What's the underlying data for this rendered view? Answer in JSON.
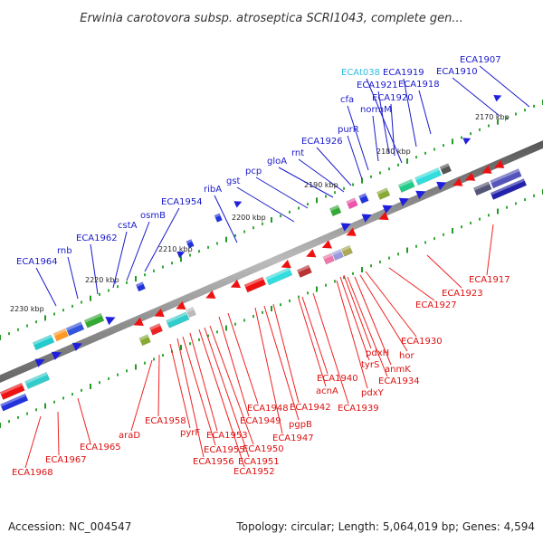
{
  "title": "Erwinia carotovora subsp. atroseptica SCRI1043, complete gen...",
  "footer": {
    "accession": "Accession: NC_004547",
    "summary": "Topology: circular; Length: 5,064,019 bp; Genes: 4,594"
  },
  "colors": {
    "top_label": "#1a1acc",
    "top_label_rna": "#33bbdd",
    "bottom_label": "#dd1111",
    "backbone": "#888888"
  },
  "scale_labels": [
    "2170 kbp",
    "2180 kbp",
    "2190 kbp",
    "2200 kbp",
    "2210 kbp",
    "2220 kbp",
    "2230 kbp"
  ],
  "top_genes": [
    "ECA1907",
    "ECA1910",
    "ECA1918",
    "ECA1919",
    "ECAt038",
    "ECA1920",
    "ECA1921",
    "normM",
    "cfa",
    "purR",
    "ECA1926",
    "rnt",
    "gloA",
    "pcp",
    "gst",
    "ribA",
    "ECA1954",
    "osmB",
    "cstA",
    "ECA1962",
    "rnb",
    "ECA1964"
  ],
  "bottom_genes": [
    "ECA1917",
    "ECA1923",
    "ECA1927",
    "ECA1930",
    "hor",
    "anmK",
    "ECA1934",
    "tyrS",
    "pdxH",
    "pdxY",
    "ECA1939",
    "ECA1940",
    "acnA",
    "ECA1942",
    "pgpB",
    "ECA1947",
    "ECA1948",
    "ECA1949",
    "ECA1950",
    "ECA1951",
    "ECA1952",
    "ECA1953",
    "ECA1955",
    "ECA1956",
    "pyrF",
    "ECA1958",
    "araD",
    "ECA1965",
    "ECA1967",
    "ECA1968"
  ]
}
